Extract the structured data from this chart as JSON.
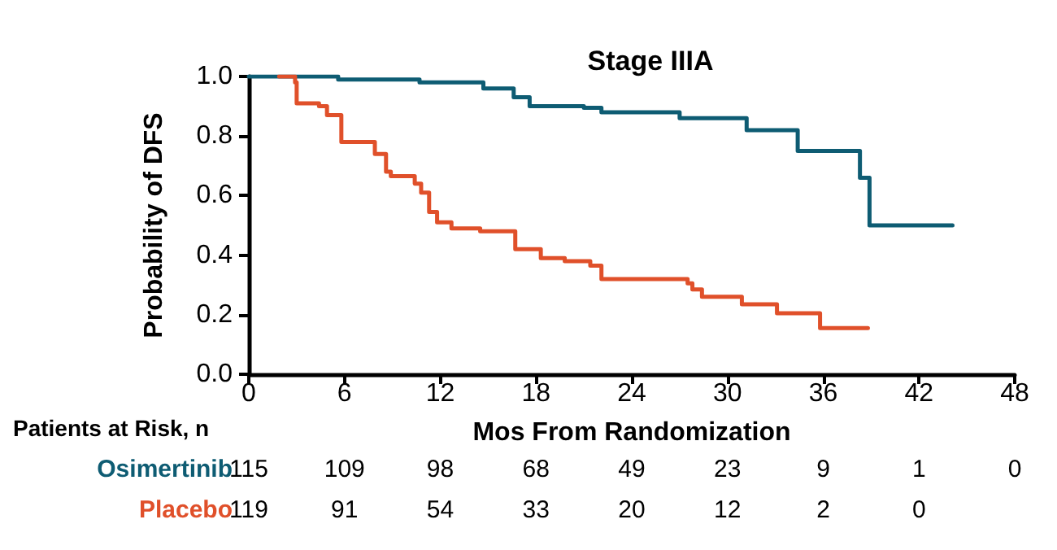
{
  "chart_data": {
    "type": "step",
    "title": "Stage IIIA",
    "xlabel": "Mos From Randomization",
    "ylabel": "Probability of DFS",
    "series": [
      {
        "name": "Osimertinib",
        "color": "#0e5c73",
        "x": [
          0,
          5.6,
          10.7,
          14.7,
          16.6,
          17.6,
          21,
          22.1,
          27,
          31.2,
          34.4,
          38.3,
          38.9,
          44.1
        ],
        "values": [
          1.0,
          0.99,
          0.98,
          0.96,
          0.93,
          0.9,
          0.895,
          0.88,
          0.86,
          0.82,
          0.75,
          0.66,
          0.5,
          0.5
        ]
      },
      {
        "name": "Placebo",
        "color": "#e0502a",
        "x": [
          1.9,
          2.9,
          3.0,
          4.4,
          4.9,
          5.8,
          7.9,
          8.6,
          8.9,
          10.4,
          10.8,
          11.3,
          11.8,
          12.7,
          14.5,
          16.7,
          18.3,
          19.8,
          21.4,
          22.1,
          27.5,
          27.8,
          28.4,
          30.9,
          33.1,
          35.8,
          38.8
        ],
        "values": [
          1.0,
          0.98,
          0.91,
          0.9,
          0.87,
          0.78,
          0.74,
          0.68,
          0.665,
          0.64,
          0.61,
          0.545,
          0.51,
          0.49,
          0.48,
          0.42,
          0.39,
          0.38,
          0.365,
          0.32,
          0.305,
          0.285,
          0.26,
          0.235,
          0.205,
          0.155,
          0.155
        ]
      }
    ],
    "xlim": [
      0,
      48
    ],
    "xticks": [
      0,
      6,
      12,
      18,
      24,
      30,
      36,
      42,
      48
    ],
    "ylim": [
      0,
      1
    ],
    "yticks": [
      {
        "value": 0,
        "label": "0.0"
      },
      {
        "value": 0.2,
        "label": "0.2"
      },
      {
        "value": 0.4,
        "label": "0.4"
      },
      {
        "value": 0.6,
        "label": "0.6"
      },
      {
        "value": 0.8,
        "label": "0.8"
      },
      {
        "value": 1,
        "label": "1.0"
      }
    ],
    "grid": false,
    "legend": false,
    "marker": "none",
    "line_style": "solid",
    "annotations": [
      "Patients at Risk, n",
      "115 109 98 68 49 23 9 1 0",
      "119 91 54 33 20 12 2 0"
    ]
  }
}
